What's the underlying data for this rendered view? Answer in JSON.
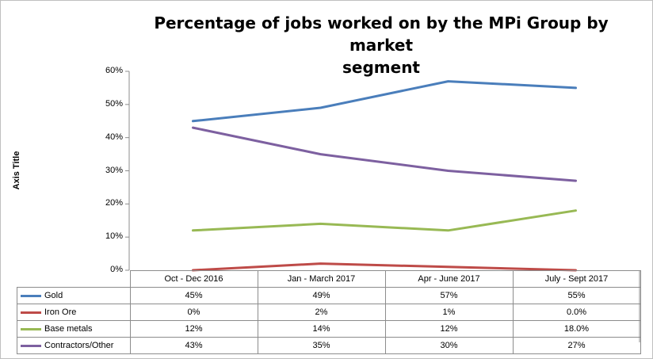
{
  "chart_data": {
    "type": "line",
    "title": "Percentage of jobs worked on by the MPi  Group by market\nsegment",
    "ylabel": "Axis Title",
    "xlabel": "",
    "ylim": [
      0,
      60
    ],
    "yticks": [
      "0%",
      "10%",
      "20%",
      "30%",
      "40%",
      "50%",
      "60%"
    ],
    "categories": [
      "Oct - Dec 2016",
      "Jan - March 2017",
      "Apr - June 2017",
      "July - Sept 2017"
    ],
    "series": [
      {
        "name": "Gold",
        "color": "#4a7ebb",
        "values": [
          45,
          49,
          57,
          55
        ],
        "labels": [
          "45%",
          "49%",
          "57%",
          "55%"
        ]
      },
      {
        "name": "Iron Ore",
        "color": "#be4b48",
        "values": [
          0,
          2,
          1,
          0
        ],
        "labels": [
          "0%",
          "2%",
          "1%",
          "0.0%"
        ]
      },
      {
        "name": "Base metals",
        "color": "#98b954",
        "values": [
          12,
          14,
          12,
          18
        ],
        "labels": [
          "12%",
          "14%",
          "12%",
          "18.0%"
        ]
      },
      {
        "name": "Contractors/Other",
        "color": "#7d60a0",
        "values": [
          43,
          35,
          30,
          27
        ],
        "labels": [
          "43%",
          "35%",
          "30%",
          "27%"
        ]
      }
    ],
    "gridlines": false,
    "legend": "data-table"
  }
}
